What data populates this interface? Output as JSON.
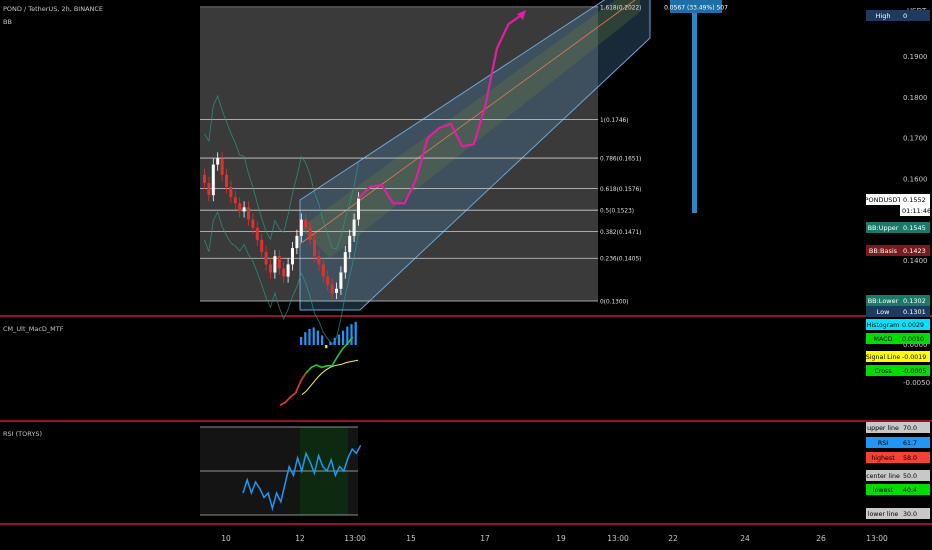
{
  "header": {
    "symbol_line": "POND / TetherUS, 2h, BINANCE",
    "bb_label": "BB",
    "macd_label": "CM_Ult_MacD_MTF",
    "rsi_label": "RSI (TORYS)"
  },
  "price_axis": {
    "currency": "USDT",
    "ticks": [
      "0.1900",
      "0.1800",
      "0.1700",
      "0.1600",
      "0.1400"
    ],
    "tick_values": [
      0.19,
      0.18,
      0.17,
      0.16,
      0.14
    ]
  },
  "badges": {
    "high_label": "High",
    "high_value": "0",
    "pond_label": "PONDUSDT",
    "pond_value": "0.1552",
    "countdown": "01:11:46",
    "bb_upper_label": "BB:Upper",
    "bb_upper_value": "0.1545",
    "bb_basis_label": "BB:Basis",
    "bb_basis_value": "0.1423",
    "bb_lower_label": "BB:Lower",
    "bb_lower_value": "0.1302",
    "low_label": "Low",
    "low_value": "0.1301"
  },
  "colors": {
    "background": "#000000",
    "fib_box": "#3a3a3a",
    "channel_fill": "#4a7fa8",
    "channel_mid": "#6b7f3a",
    "projection": "#e020a0",
    "candle_up": "#ffffff",
    "candle_down": "#e03030",
    "separator": "#c2183a",
    "ruler": "#2e86c1",
    "bb_teal": "#1a7a6a",
    "bb_red": "#7a1a1a"
  },
  "fib_levels": [
    {
      "text": "1.618(0.2022)",
      "value": 0.2022
    },
    {
      "text": "1(0.1746)",
      "value": 0.1746
    },
    {
      "text": "0.786(0.1651)",
      "value": 0.1651
    },
    {
      "text": "0.618(0.1576)",
      "value": 0.1576
    },
    {
      "text": "0.5(0.1523)",
      "value": 0.1523
    },
    {
      "text": "0.382(0.1471)",
      "value": 0.1471
    },
    {
      "text": "0.236(0.1405)",
      "value": 0.1405
    },
    {
      "text": "0(0.1300)",
      "value": 0.13
    }
  ],
  "ruler_label": "0.0567 (33.49%) 507",
  "macd_badges": [
    {
      "label": "Histogram",
      "value": "0.0029",
      "color": "#00e5ff"
    },
    {
      "label": "MACD",
      "value": "0.0010",
      "color": "#00dd00"
    },
    {
      "label": "Signal Line",
      "value": "-0.0019",
      "color": "#ffff00"
    },
    {
      "label": "Cross",
      "value": "-0.0005",
      "color": "#00dd00"
    }
  ],
  "macd_axis": {
    "ticks": [
      "0.0000",
      "-0.0050"
    ]
  },
  "rsi_badges": [
    {
      "label": "upper line",
      "value": "70.0",
      "color": "#c8c8c8"
    },
    {
      "label": "RSI",
      "value": "61.7",
      "color": "#2196f3"
    },
    {
      "label": "highest",
      "value": "58.0",
      "color": "#f44336"
    },
    {
      "label": "center line",
      "value": "50.0",
      "color": "#c8c8c8"
    },
    {
      "label": "lowest",
      "value": "40.4",
      "color": "#00dd00"
    },
    {
      "label": "lower line",
      "value": "30.0",
      "color": "#c8c8c8"
    }
  ],
  "time_axis": [
    "10",
    "12",
    "13:00",
    "15",
    "17",
    "19",
    "13:00",
    "22",
    "24",
    "26",
    "13:00"
  ],
  "chart_data": {
    "type": "line",
    "title": "POND / TetherUS, 2h, BINANCE",
    "ylim": [
      0.125,
      0.205
    ],
    "price": [
      0.159,
      0.156,
      0.1635,
      0.165,
      0.161,
      0.158,
      0.1555,
      0.154,
      0.152,
      0.153,
      0.15,
      0.148,
      0.145,
      0.142,
      0.139,
      0.137,
      0.141,
      0.138,
      0.136,
      0.139,
      0.143,
      0.146,
      0.15,
      0.148,
      0.145,
      0.141,
      0.139,
      0.136,
      0.134,
      0.132,
      0.133,
      0.137,
      0.142,
      0.146,
      0.15,
      0.1552
    ],
    "projection": [
      0.1552,
      0.158,
      0.1585,
      0.154,
      0.154,
      0.16,
      0.17,
      0.1725,
      0.1735,
      0.168,
      0.1685,
      0.178,
      0.192,
      0.198,
      0.2
    ],
    "rsi": [
      40,
      46,
      40,
      45,
      42,
      38,
      40,
      33,
      40,
      36,
      44,
      52,
      48,
      56,
      50,
      58,
      54,
      49,
      57,
      52,
      50,
      55,
      48,
      52,
      50,
      56,
      60,
      58,
      61.7
    ],
    "macd_line": [
      -0.0075,
      -0.0072,
      -0.0065,
      -0.006,
      -0.0045,
      -0.0035,
      -0.0028,
      -0.0025,
      -0.0028,
      -0.0026,
      -0.0026,
      -0.0015,
      -0.0005,
      0.0002,
      0.001
    ],
    "signal_line": [
      -0.0062,
      -0.0058,
      -0.0052,
      -0.0046,
      -0.004,
      -0.0035,
      -0.0031,
      -0.0028,
      -0.0026,
      -0.0025,
      -0.0024,
      -0.0022,
      -0.0021,
      -0.002,
      -0.0019
    ],
    "histogram": [
      0.001,
      0.0016,
      0.002,
      0.0022,
      0.0018,
      0.0012,
      -0.0004,
      0.0004,
      0.0009,
      0.0013,
      0.0018,
      0.0023,
      0.0026,
      0.0029
    ],
    "rsi_lines": [
      70,
      50,
      30
    ]
  }
}
